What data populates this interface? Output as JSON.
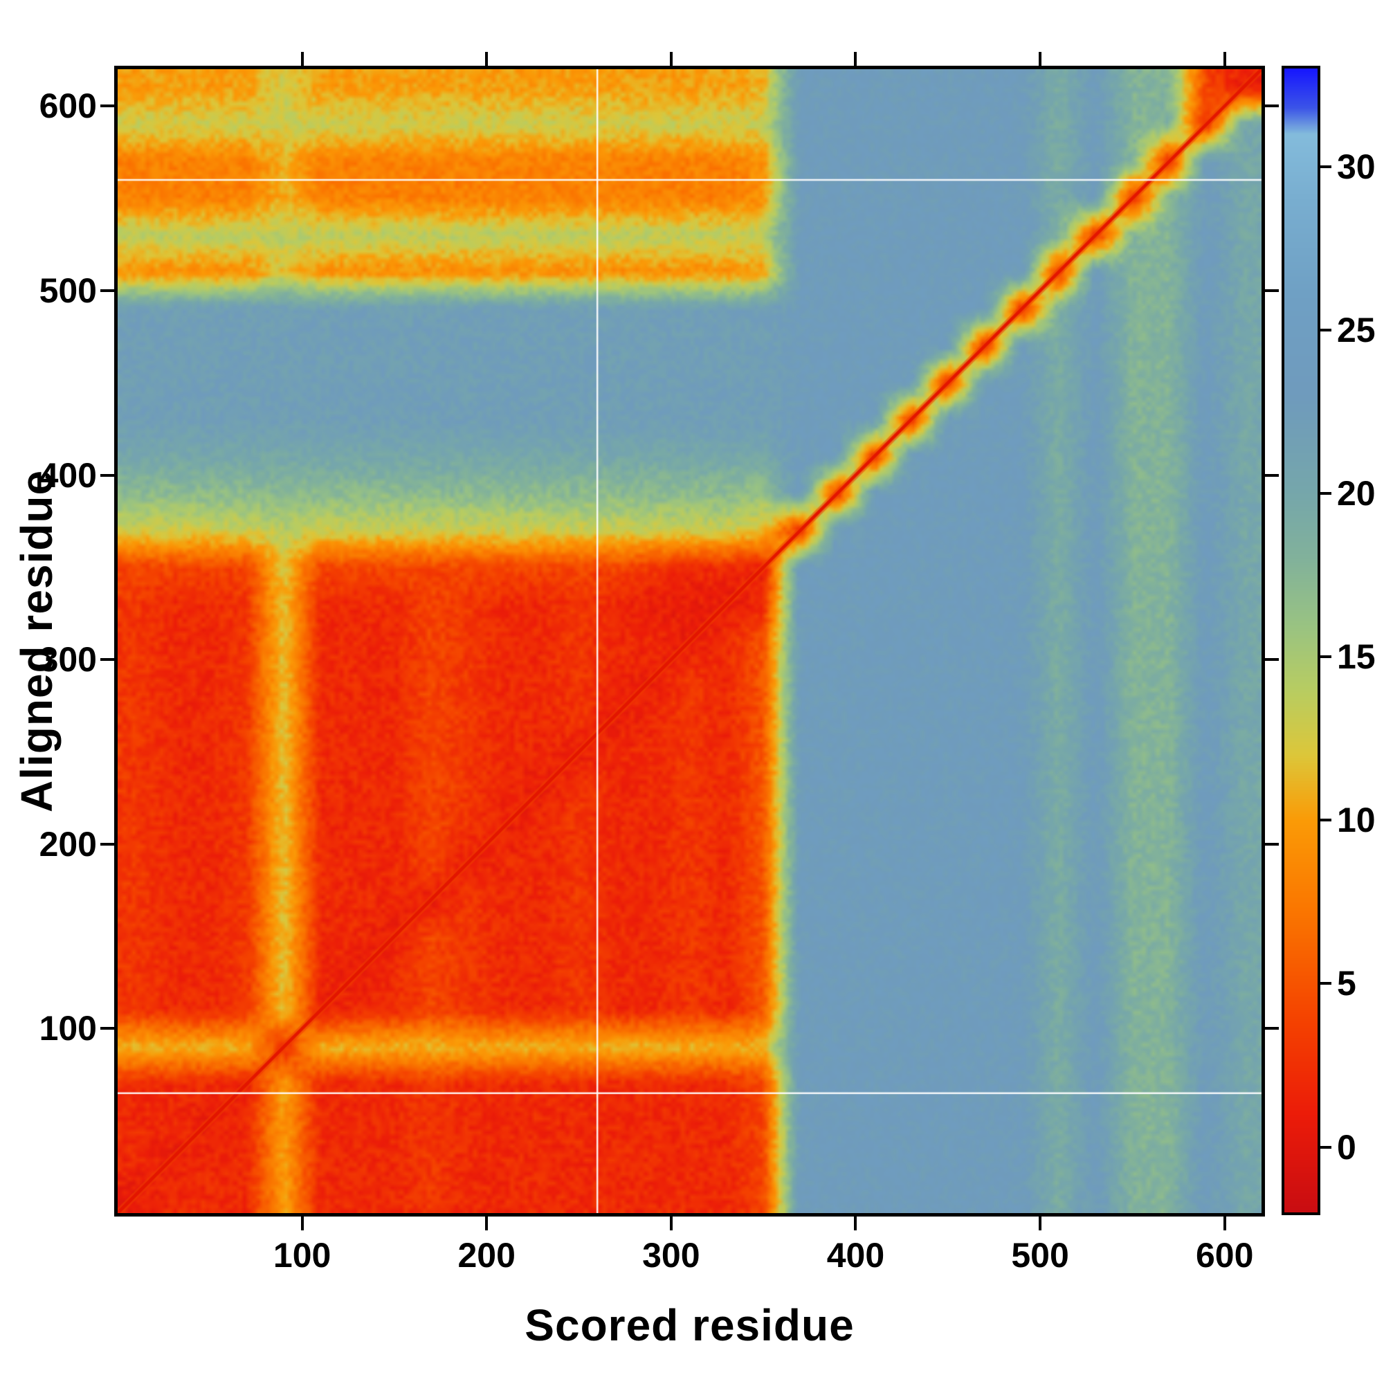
{
  "chart_data": {
    "type": "heatmap",
    "title": "",
    "xlabel": "Scored residue",
    "ylabel": "Aligned residue",
    "x_range": [
      0,
      620
    ],
    "y_range": [
      0,
      620
    ],
    "x_ticks": [
      100,
      200,
      300,
      400,
      500,
      600
    ],
    "y_ticks": [
      100,
      200,
      300,
      400,
      500,
      600
    ],
    "bin_size": 20,
    "value_matrix_origin": "bottom-left",
    "values": [
      [
        1,
        2,
        2,
        2,
        10,
        2,
        2,
        2,
        3,
        2,
        2,
        2,
        2,
        2,
        2,
        2,
        2,
        4,
        23,
        23,
        23,
        23,
        23,
        23,
        23,
        19,
        23,
        18,
        18,
        23,
        20
      ],
      [
        2,
        1,
        2,
        2,
        10,
        2,
        2,
        2,
        3,
        2,
        2,
        2,
        2,
        2,
        2,
        2,
        2,
        4,
        23,
        23,
        23,
        23,
        23,
        23,
        23,
        19,
        23,
        18,
        18,
        23,
        20
      ],
      [
        2,
        2,
        1,
        2,
        10,
        2,
        2,
        2,
        3,
        2,
        2,
        2,
        2,
        2,
        2,
        2,
        2,
        4,
        23,
        23,
        23,
        23,
        23,
        23,
        23,
        19,
        23,
        18,
        18,
        23,
        20
      ],
      [
        2,
        2,
        2,
        1,
        10,
        2,
        2,
        2,
        3,
        2,
        2,
        2,
        2,
        2,
        2,
        2,
        2,
        4,
        23,
        23,
        23,
        23,
        23,
        23,
        23,
        19,
        23,
        18,
        18,
        23,
        20
      ],
      [
        11,
        11,
        11,
        11,
        2,
        11,
        11,
        11,
        11,
        11,
        11,
        11,
        11,
        11,
        11,
        11,
        11,
        11,
        23,
        23,
        23,
        23,
        23,
        23,
        23,
        19,
        23,
        18,
        18,
        23,
        20
      ],
      [
        3,
        2,
        2,
        3,
        12,
        1,
        2,
        2,
        4,
        3,
        2,
        2,
        3,
        2,
        2,
        3,
        2,
        5,
        23,
        23,
        23,
        23,
        23,
        23,
        23,
        19,
        23,
        18,
        18,
        23,
        20
      ],
      [
        3,
        2,
        2,
        3,
        12,
        2,
        1,
        2,
        4,
        3,
        2,
        2,
        3,
        2,
        2,
        3,
        2,
        5,
        23,
        23,
        23,
        23,
        23,
        23,
        23,
        19,
        23,
        18,
        18,
        23,
        20
      ],
      [
        3,
        2,
        2,
        3,
        12,
        2,
        2,
        1,
        4,
        3,
        2,
        2,
        3,
        2,
        2,
        3,
        2,
        5,
        23,
        23,
        23,
        23,
        23,
        23,
        23,
        19,
        23,
        18,
        18,
        23,
        20
      ],
      [
        3,
        2,
        2,
        3,
        12,
        2,
        2,
        2,
        1,
        3,
        2,
        2,
        3,
        2,
        2,
        3,
        2,
        5,
        23,
        23,
        23,
        23,
        23,
        23,
        23,
        19,
        23,
        18,
        18,
        23,
        20
      ],
      [
        3,
        2,
        2,
        3,
        12,
        2,
        2,
        2,
        4,
        1,
        2,
        2,
        3,
        2,
        2,
        3,
        2,
        5,
        23,
        23,
        23,
        23,
        23,
        23,
        23,
        19,
        23,
        18,
        18,
        23,
        20
      ],
      [
        3,
        2,
        2,
        3,
        12,
        2,
        2,
        2,
        4,
        3,
        1,
        2,
        3,
        2,
        2,
        3,
        2,
        5,
        23,
        23,
        23,
        23,
        23,
        23,
        23,
        19,
        23,
        18,
        18,
        23,
        20
      ],
      [
        3,
        2,
        2,
        3,
        12,
        2,
        2,
        2,
        4,
        3,
        2,
        1,
        3,
        2,
        2,
        3,
        2,
        5,
        23,
        23,
        23,
        23,
        23,
        23,
        23,
        19,
        23,
        18,
        18,
        23,
        20
      ],
      [
        3,
        2,
        2,
        3,
        12,
        2,
        2,
        2,
        4,
        3,
        2,
        2,
        1,
        2,
        2,
        3,
        2,
        5,
        23,
        23,
        23,
        23,
        23,
        23,
        23,
        19,
        23,
        18,
        18,
        23,
        20
      ],
      [
        3,
        2,
        2,
        3,
        12,
        2,
        2,
        2,
        4,
        3,
        2,
        2,
        3,
        1,
        2,
        3,
        2,
        5,
        23,
        23,
        23,
        23,
        23,
        23,
        23,
        19,
        23,
        18,
        18,
        23,
        20
      ],
      [
        3,
        2,
        2,
        3,
        12,
        2,
        2,
        2,
        4,
        3,
        2,
        2,
        3,
        2,
        1,
        3,
        2,
        5,
        23,
        23,
        23,
        23,
        23,
        23,
        23,
        19,
        23,
        18,
        18,
        23,
        20
      ],
      [
        3,
        2,
        2,
        3,
        12,
        2,
        2,
        2,
        4,
        3,
        2,
        2,
        3,
        2,
        2,
        1,
        2,
        5,
        23,
        23,
        23,
        23,
        23,
        23,
        23,
        19,
        23,
        18,
        18,
        23,
        20
      ],
      [
        3,
        2,
        2,
        3,
        12,
        2,
        2,
        2,
        4,
        3,
        2,
        2,
        3,
        2,
        1,
        1,
        1,
        2,
        23,
        23,
        23,
        23,
        23,
        23,
        23,
        19,
        23,
        18,
        18,
        23,
        20
      ],
      [
        4,
        4,
        4,
        4,
        12,
        4,
        4,
        4,
        4,
        4,
        4,
        4,
        4,
        4,
        3,
        2,
        2,
        1,
        23,
        23,
        23,
        23,
        23,
        23,
        23,
        19,
        23,
        18,
        18,
        23,
        20
      ],
      [
        13,
        13,
        13,
        13,
        14,
        13,
        13,
        13,
        13,
        13,
        13,
        13,
        13,
        13,
        13,
        13,
        13,
        12,
        2,
        23,
        23,
        23,
        23,
        23,
        23,
        19,
        23,
        18,
        18,
        23,
        20
      ],
      [
        17,
        17,
        17,
        17,
        17,
        17,
        17,
        17,
        17,
        17,
        17,
        17,
        17,
        17,
        17,
        17,
        17,
        16,
        23,
        2,
        23,
        23,
        23,
        23,
        23,
        19,
        23,
        18,
        18,
        23,
        20
      ],
      [
        20,
        20,
        20,
        20,
        20,
        20,
        20,
        20,
        20,
        20,
        20,
        20,
        20,
        20,
        20,
        20,
        20,
        20,
        23,
        23,
        2,
        23,
        23,
        23,
        23,
        19,
        23,
        18,
        18,
        23,
        20
      ],
      [
        22,
        22,
        22,
        22,
        22,
        22,
        22,
        22,
        22,
        22,
        22,
        22,
        22,
        22,
        22,
        22,
        22,
        22,
        23,
        23,
        23,
        2,
        23,
        23,
        23,
        19,
        23,
        18,
        18,
        23,
        20
      ],
      [
        22,
        22,
        22,
        22,
        22,
        22,
        22,
        22,
        22,
        22,
        22,
        22,
        22,
        22,
        22,
        22,
        22,
        22,
        23,
        23,
        23,
        23,
        2,
        23,
        23,
        19,
        23,
        18,
        18,
        23,
        20
      ],
      [
        22,
        22,
        22,
        22,
        22,
        22,
        22,
        22,
        22,
        22,
        22,
        22,
        22,
        22,
        22,
        22,
        22,
        22,
        23,
        23,
        23,
        23,
        23,
        2,
        23,
        19,
        23,
        18,
        18,
        23,
        20
      ],
      [
        22,
        22,
        22,
        22,
        22,
        22,
        22,
        22,
        22,
        22,
        22,
        22,
        22,
        22,
        22,
        22,
        22,
        22,
        23,
        23,
        23,
        23,
        23,
        23,
        2,
        19,
        23,
        18,
        18,
        23,
        20
      ],
      [
        9,
        9,
        9,
        9,
        12,
        9,
        9,
        9,
        9,
        9,
        9,
        9,
        9,
        9,
        9,
        9,
        9,
        10,
        23,
        23,
        23,
        23,
        23,
        23,
        23,
        2,
        23,
        18,
        18,
        23,
        20
      ],
      [
        14,
        14,
        14,
        14,
        14,
        14,
        14,
        14,
        14,
        14,
        14,
        14,
        14,
        14,
        14,
        14,
        14,
        14,
        23,
        23,
        23,
        23,
        23,
        23,
        23,
        19,
        2,
        18,
        18,
        23,
        20
      ],
      [
        8,
        8,
        8,
        8,
        11,
        8,
        8,
        8,
        8,
        8,
        8,
        8,
        8,
        8,
        8,
        8,
        8,
        9,
        23,
        23,
        23,
        23,
        23,
        23,
        23,
        19,
        23,
        2,
        18,
        23,
        20
      ],
      [
        8,
        8,
        8,
        8,
        11,
        8,
        8,
        8,
        8,
        8,
        8,
        8,
        8,
        8,
        8,
        8,
        8,
        9,
        23,
        23,
        23,
        23,
        23,
        23,
        23,
        19,
        23,
        18,
        2,
        23,
        20
      ],
      [
        13,
        13,
        13,
        13,
        13,
        13,
        13,
        13,
        13,
        13,
        13,
        13,
        13,
        13,
        13,
        13,
        13,
        13,
        23,
        23,
        23,
        23,
        23,
        23,
        23,
        19,
        23,
        18,
        18,
        2,
        20
      ],
      [
        10,
        10,
        10,
        10,
        13,
        10,
        10,
        10,
        10,
        10,
        10,
        10,
        10,
        10,
        10,
        10,
        10,
        11,
        23,
        23,
        23,
        23,
        23,
        23,
        23,
        19,
        23,
        18,
        18,
        4,
        1
      ]
    ],
    "diagonal": {
      "from": [
        0,
        0
      ],
      "to": [
        620,
        620
      ],
      "color": "#e31500"
    },
    "white_gap_lines": {
      "horizontal_y": [
        65,
        560
      ],
      "vertical_x": [
        260
      ]
    },
    "colorbar": {
      "range": [
        -2,
        33
      ],
      "ticks": [
        0,
        5,
        10,
        15,
        20,
        25,
        30
      ]
    },
    "colormap_stops": [
      [
        -2,
        "#c90d12"
      ],
      [
        1,
        "#ec1c09"
      ],
      [
        4,
        "#f54400"
      ],
      [
        7,
        "#fa7300"
      ],
      [
        10,
        "#fb9b07"
      ],
      [
        12,
        "#ddc73a"
      ],
      [
        14,
        "#b8cd62"
      ],
      [
        16,
        "#99c383"
      ],
      [
        18,
        "#82b29b"
      ],
      [
        20,
        "#76a7ab"
      ],
      [
        23,
        "#6f9bbd"
      ],
      [
        26,
        "#6fa0c4"
      ],
      [
        29,
        "#79aed0"
      ],
      [
        31,
        "#84bcdc"
      ],
      [
        31.8,
        "#3c55e8"
      ],
      [
        33,
        "#1717ff"
      ]
    ]
  }
}
